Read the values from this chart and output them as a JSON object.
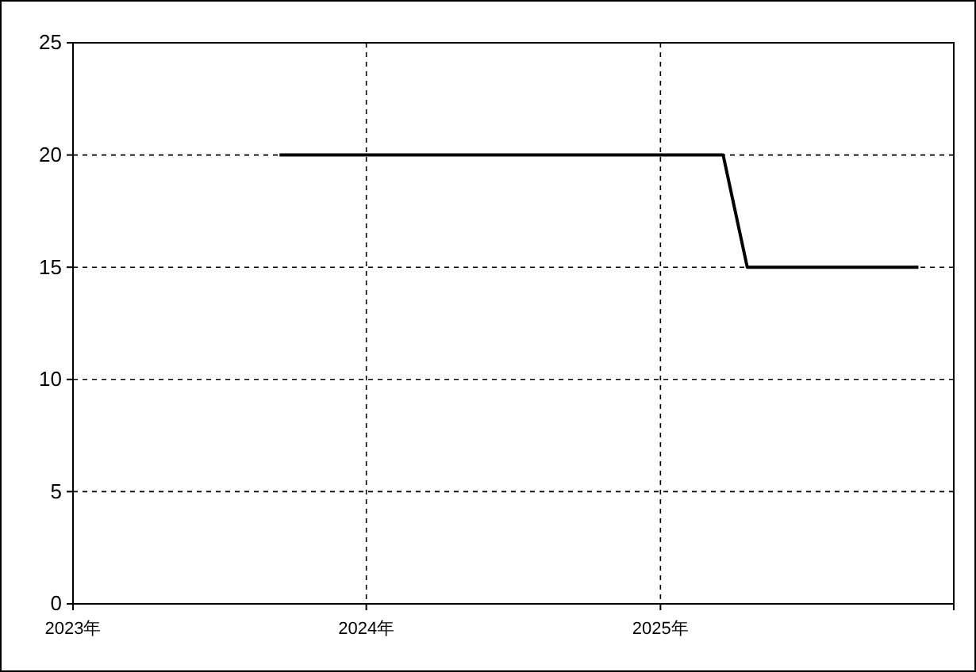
{
  "chart_data": {
    "type": "line",
    "x": [
      "2023-09-15",
      "2025-03-20",
      "2025-04-19",
      "2025-11-18"
    ],
    "series": [
      {
        "color": "#000000",
        "values": [
          20,
          20,
          15,
          15
        ]
      }
    ],
    "xlim": [
      "2023-01-01",
      "2026-01-01"
    ],
    "xticks": [
      {
        "value": "2023-01-01",
        "label": "2023年"
      },
      {
        "value": "2024-01-01",
        "label": "2024年"
      },
      {
        "value": "2025-01-01",
        "label": "2025年"
      }
    ],
    "ylim": [
      0,
      25
    ],
    "yticks": [
      0,
      5,
      10,
      15,
      20,
      25
    ],
    "grid": true,
    "marker": "none",
    "line_style": "solid"
  }
}
